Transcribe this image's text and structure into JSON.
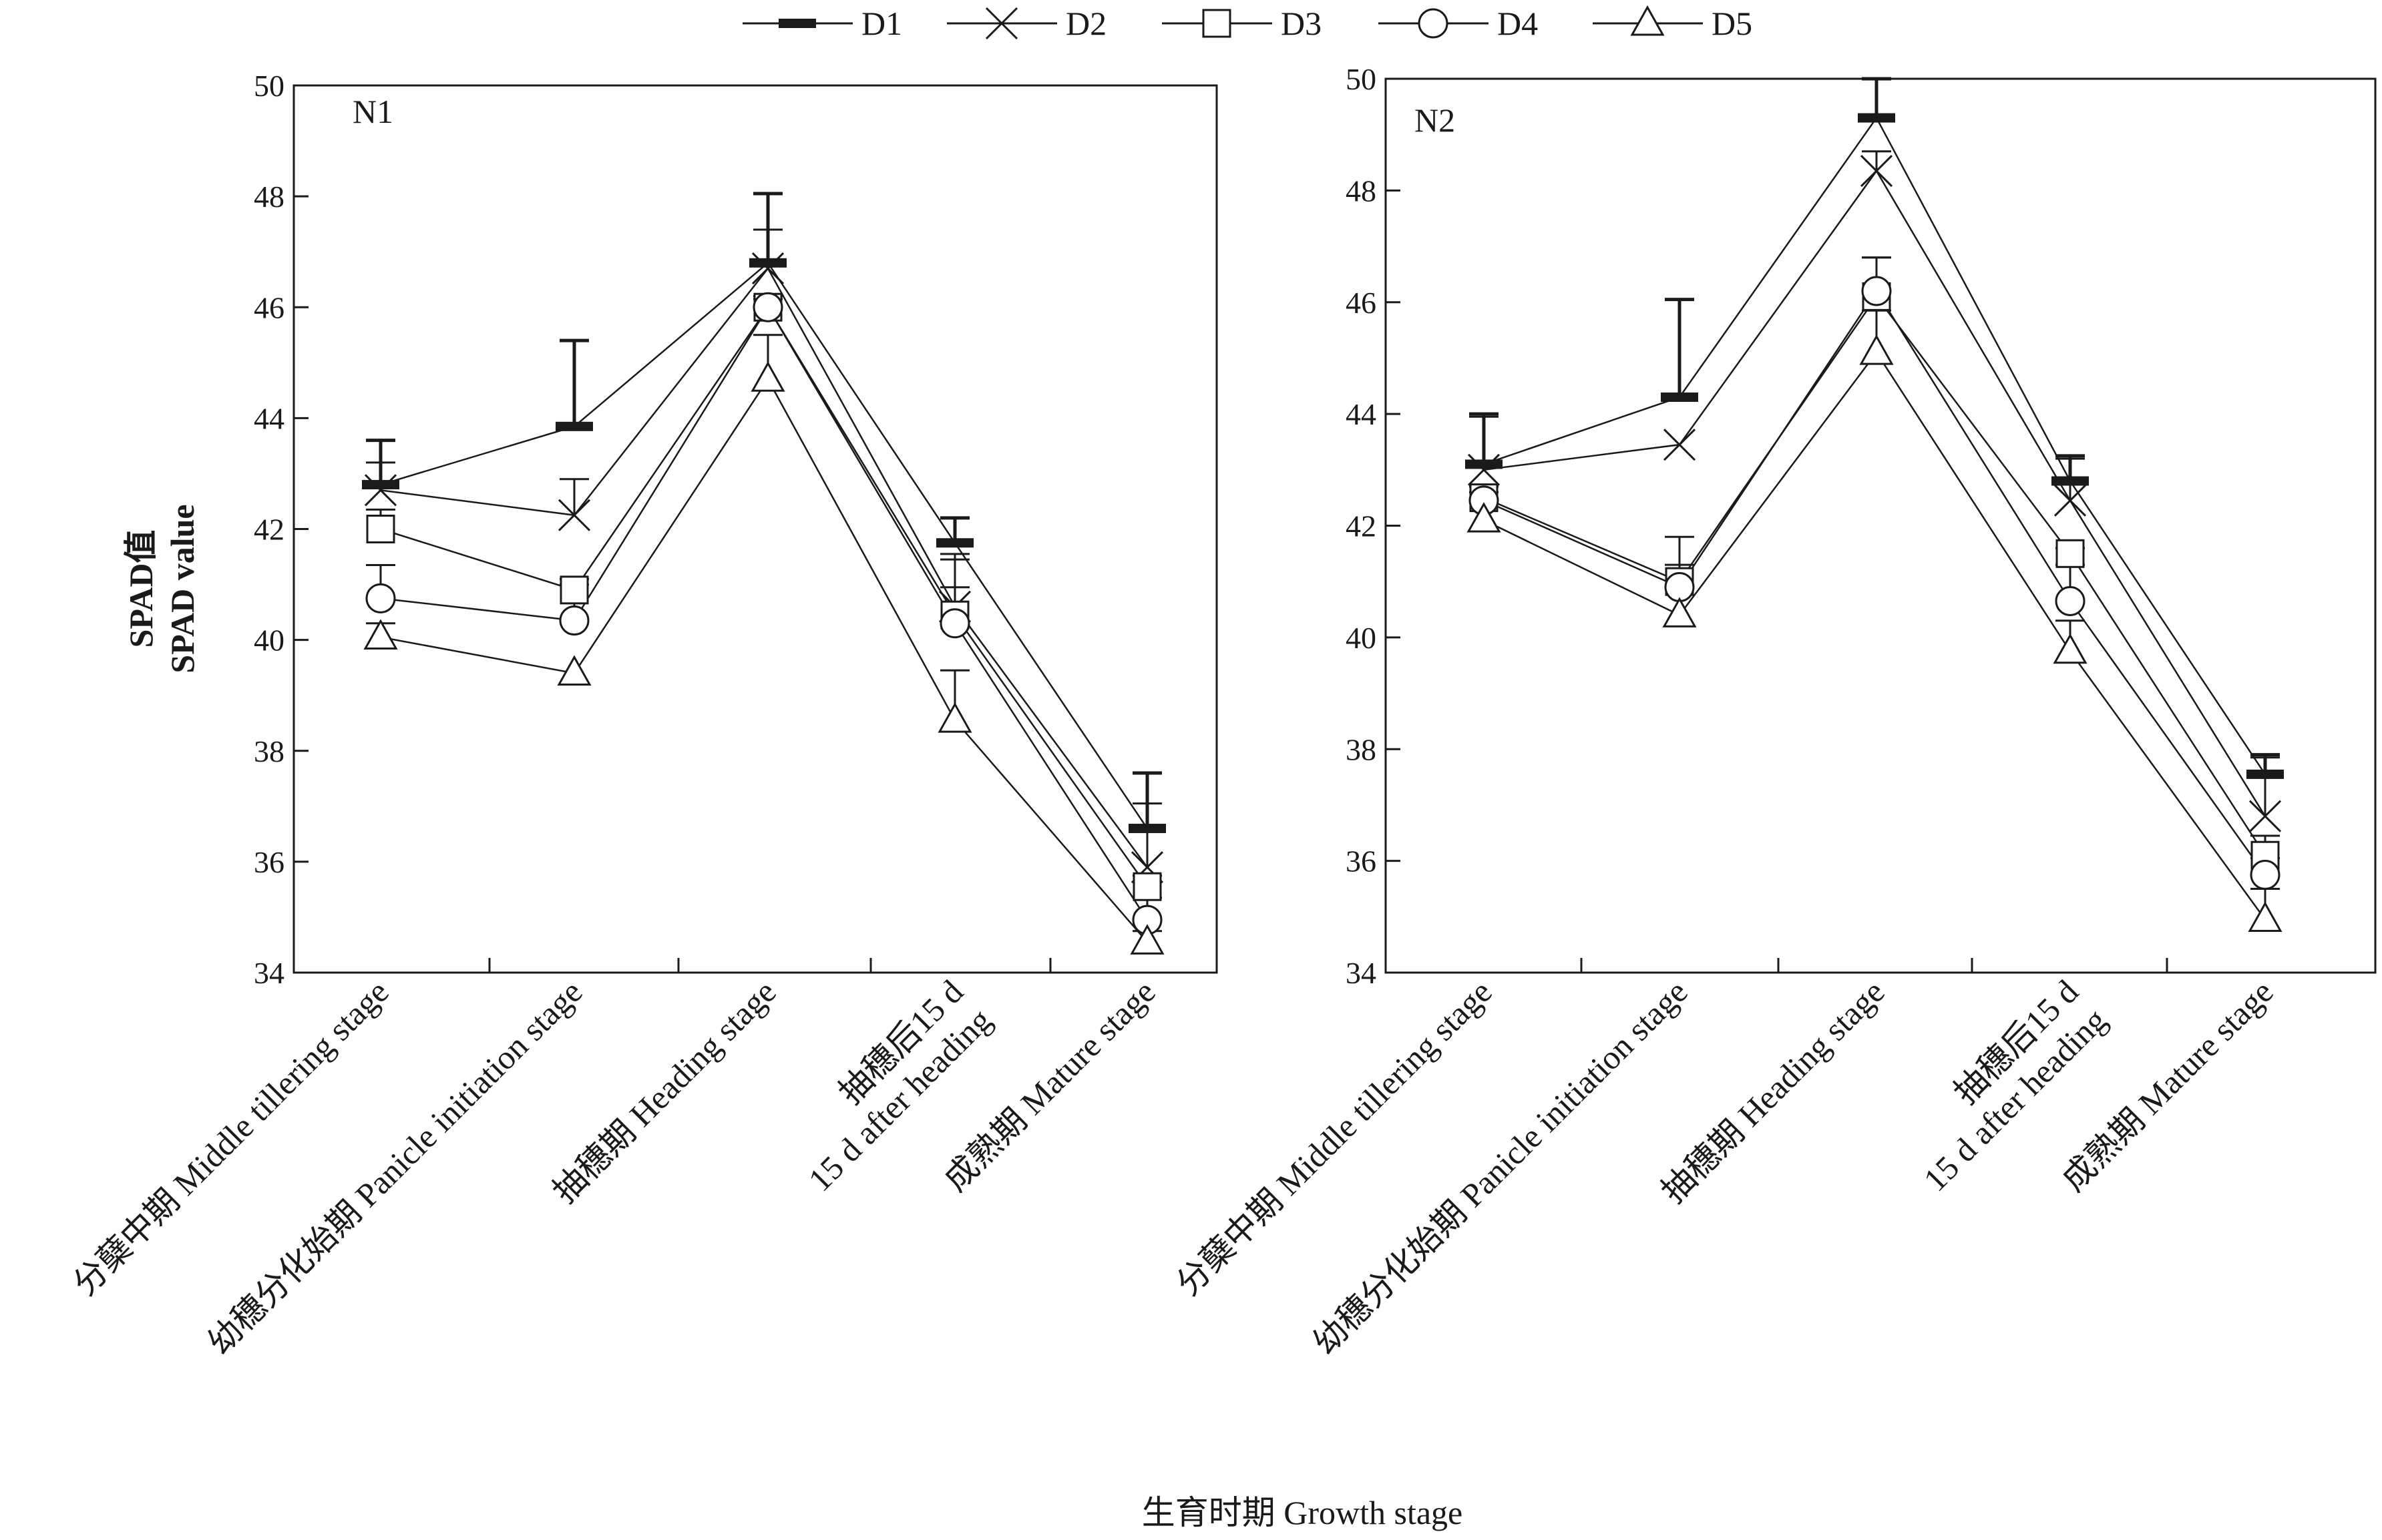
{
  "figure": {
    "ylabel_cn": "SPAD值",
    "ylabel_en": "SPAD value",
    "xlabel": "生育时期 Growth stage"
  },
  "legend": [
    {
      "name": "D1",
      "marker": "thick-bar"
    },
    {
      "name": "D2",
      "marker": "cross"
    },
    {
      "name": "D3",
      "marker": "square"
    },
    {
      "name": "D4",
      "marker": "circle"
    },
    {
      "name": "D5",
      "marker": "triangle"
    }
  ],
  "colors": {
    "ink": "#1a1a1a",
    "background": "#ffffff"
  },
  "chart_data": [
    {
      "type": "line",
      "panel": "N1",
      "categories": [
        "分蘖中期 Middle tillering stage",
        "幼穗分化始期 Panicle initiation stage",
        "抽穗期 Heading stage",
        "抽穗后15 d 15 d after heading",
        "成熟期 Mature stage"
      ],
      "ylim": [
        34,
        50
      ],
      "yticks": [
        "34",
        "36",
        "38",
        "40",
        "42",
        "44",
        "46",
        "48",
        "50"
      ],
      "grid": false,
      "series": [
        {
          "name": "D1",
          "values": [
            42.8,
            43.85,
            46.8,
            41.75,
            36.6
          ],
          "errors": [
            0.8,
            1.55,
            1.25,
            0.45,
            1.0
          ]
        },
        {
          "name": "D2",
          "values": [
            42.7,
            42.25,
            46.7,
            40.6,
            35.9
          ],
          "errors": [
            0.5,
            0.65,
            0.7,
            0.35,
            1.15
          ]
        },
        {
          "name": "D3",
          "values": [
            42.0,
            40.9,
            46.0,
            40.45,
            35.55
          ],
          "errors": [
            0.35,
            0.2,
            0.15,
            1.1,
            0.2
          ]
        },
        {
          "name": "D4",
          "values": [
            40.75,
            40.35,
            46.0,
            40.3,
            34.95
          ],
          "errors": [
            0.6,
            0.65,
            0.2,
            1.15,
            0.4
          ]
        },
        {
          "name": "D5",
          "values": [
            40.05,
            39.4,
            44.7,
            38.55,
            34.55
          ],
          "errors": [
            0.25,
            0.0,
            0.8,
            0.9,
            0.2
          ]
        }
      ]
    },
    {
      "type": "line",
      "panel": "N2",
      "categories": [
        "分蘖中期 Middle tillering stage",
        "幼穗分化始期 Panicle initiation stage",
        "抽穗期 Heading stage",
        "抽穗后15 d 15 d after heading",
        "成熟期 Mature stage"
      ],
      "ylim": [
        34,
        50
      ],
      "yticks": [
        "34",
        "36",
        "38",
        "40",
        "42",
        "44",
        "46",
        "48",
        "50"
      ],
      "grid": false,
      "series": [
        {
          "name": "D1",
          "values": [
            43.1,
            44.3,
            49.3,
            42.8,
            37.55
          ],
          "errors": [
            0.9,
            1.75,
            0.7,
            0.45,
            0.35
          ]
        },
        {
          "name": "D2",
          "values": [
            43.0,
            43.45,
            48.35,
            42.45,
            36.8
          ],
          "errors": [
            0.95,
            0.0,
            0.35,
            0.75,
            1.05
          ]
        },
        {
          "name": "D3",
          "values": [
            42.5,
            41.0,
            46.1,
            41.5,
            36.1
          ],
          "errors": [
            0.2,
            0.8,
            0.7,
            0.1,
            0.35
          ]
        },
        {
          "name": "D4",
          "values": [
            42.45,
            40.9,
            46.2,
            40.65,
            35.75
          ],
          "errors": [
            0.15,
            0.4,
            0.6,
            0.65,
            0.3
          ]
        },
        {
          "name": "D5",
          "values": [
            42.1,
            40.4,
            45.1,
            39.75,
            34.95
          ],
          "errors": [
            0.0,
            0.0,
            0.75,
            0.55,
            0.55
          ]
        }
      ]
    }
  ]
}
